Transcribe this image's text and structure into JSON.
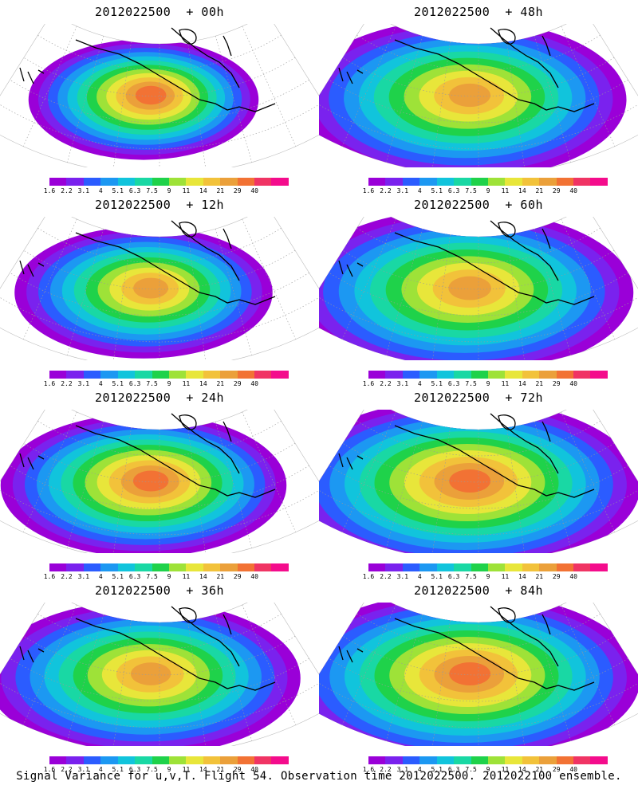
{
  "panels": [
    {
      "title": "2012022500  + 00h"
    },
    {
      "title": "2012022500  + 48h"
    },
    {
      "title": "2012022500  + 12h"
    },
    {
      "title": "2012022500  + 60h"
    },
    {
      "title": "2012022500  + 24h"
    },
    {
      "title": "2012022500  + 72h"
    },
    {
      "title": "2012022500  + 36h"
    },
    {
      "title": "2012022500  + 84h"
    }
  ],
  "colorbar": {
    "ticks": [
      "1.6",
      "2.2",
      "3.1",
      "4",
      "5.1",
      "6.3",
      "7.5",
      "9",
      "11",
      "14",
      "21",
      "29",
      "40"
    ],
    "colors": [
      "#9a00d8",
      "#7a22ee",
      "#2b5cff",
      "#1c98f2",
      "#11c4dc",
      "#19d8a4",
      "#1fd24a",
      "#9ee238",
      "#e8e63a",
      "#f2c23a",
      "#eba03a",
      "#f27234",
      "#f03464",
      "#f40c8c"
    ]
  },
  "caption": "Signal Variance for u,v,T. Flight 54. Observation time 2012022500. 2012022100 ensemble."
}
